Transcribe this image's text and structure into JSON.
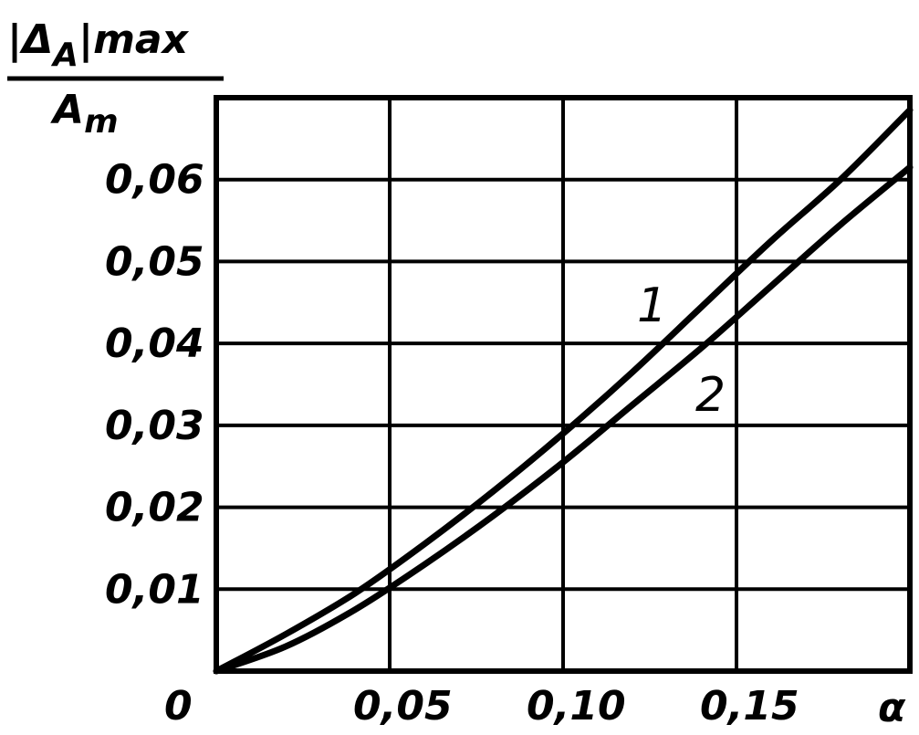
{
  "chart_data": {
    "type": "line",
    "ylabel": {
      "numerator": "|Δ_A|max",
      "denominator": "A_m"
    },
    "xlabel": "α",
    "xlim": [
      0,
      0.2
    ],
    "ylim": [
      0,
      0.07
    ],
    "grid": true,
    "x_ticks": [
      {
        "value": 0.05,
        "label": "0,05"
      },
      {
        "value": 0.1,
        "label": "0,10"
      },
      {
        "value": 0.15,
        "label": "0,15"
      }
    ],
    "y_ticks": [
      {
        "value": 0.01,
        "label": "0,01"
      },
      {
        "value": 0.02,
        "label": "0,02"
      },
      {
        "value": 0.03,
        "label": "0,03"
      },
      {
        "value": 0.04,
        "label": "0,04"
      },
      {
        "value": 0.05,
        "label": "0,05"
      },
      {
        "value": 0.06,
        "label": "0,06"
      }
    ],
    "origin_label": "0",
    "series": [
      {
        "name": "1",
        "x": [
          0,
          0.02,
          0.04,
          0.06,
          0.08,
          0.1,
          0.12,
          0.14,
          0.16,
          0.18,
          0.2
        ],
        "y": [
          0,
          0.0045,
          0.0095,
          0.0155,
          0.022,
          0.029,
          0.0365,
          0.0445,
          0.0525,
          0.06,
          0.0685
        ]
      },
      {
        "name": "2",
        "x": [
          0,
          0.02,
          0.04,
          0.06,
          0.08,
          0.1,
          0.12,
          0.14,
          0.16,
          0.18,
          0.2
        ],
        "y": [
          0,
          0.003,
          0.0075,
          0.013,
          0.019,
          0.0255,
          0.0325,
          0.0395,
          0.047,
          0.0545,
          0.0615
        ]
      }
    ]
  }
}
